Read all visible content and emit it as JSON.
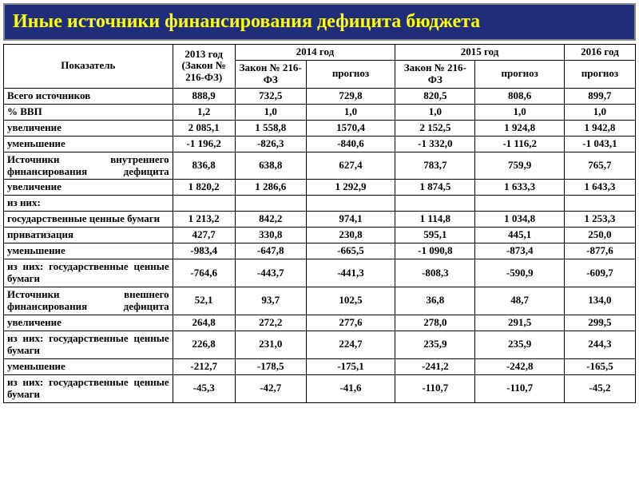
{
  "title": "Иные источники финансирования дефицита бюджета",
  "header": {
    "indicator": "Показатель",
    "y2013": "2013 год (Закон № 216-ФЗ)",
    "y2014": "2014 год",
    "y2015": "2015 год",
    "y2016": "2016 год",
    "law": "Закон № 216-ФЗ",
    "forecast": "прогноз"
  },
  "rows": [
    {
      "label": "Всего источников",
      "justify": false,
      "v": [
        "888,9",
        "732,5",
        "729,8",
        "820,5",
        "808,6",
        "899,7"
      ]
    },
    {
      "label": "% ВВП",
      "justify": false,
      "v": [
        "1,2",
        "1,0",
        "1,0",
        "1,0",
        "1,0",
        "1,0"
      ]
    },
    {
      "label": "увеличение",
      "justify": false,
      "v": [
        "2 085,1",
        "1 558,8",
        "1570,4",
        "2 152,5",
        "1 924,8",
        "1 942,8"
      ]
    },
    {
      "label": "уменьшение",
      "justify": false,
      "v": [
        "-1 196,2",
        "-826,3",
        "-840,6",
        "-1 332,0",
        "-1 116,2",
        "-1 043,1"
      ]
    },
    {
      "label": "Источники внутреннего финансирования дефицита",
      "justify": true,
      "v": [
        "836,8",
        "638,8",
        "627,4",
        "783,7",
        "759,9",
        "765,7"
      ]
    },
    {
      "label": "увеличение",
      "justify": false,
      "v": [
        "1 820,2",
        "1 286,6",
        "1 292,9",
        "1 874,5",
        "1 633,3",
        "1 643,3"
      ]
    },
    {
      "label": "из них:",
      "justify": false,
      "v": [
        "",
        "",
        "",
        "",
        "",
        ""
      ]
    },
    {
      "label": "государственные ценные бумаги",
      "justify": false,
      "v": [
        "1 213,2",
        "842,2",
        "974,1",
        "1 114,8",
        "1 034,8",
        "1 253,3"
      ]
    },
    {
      "label": "приватизация",
      "justify": false,
      "v": [
        "427,7",
        "330,8",
        "230,8",
        "595,1",
        "445,1",
        "250,0"
      ]
    },
    {
      "label": "уменьшение",
      "justify": false,
      "v": [
        "-983,4",
        "-647,8",
        "-665,5",
        "-1 090,8",
        "-873,4",
        "-877,6"
      ]
    },
    {
      "label": "из них: государственные ценные бумаги",
      "justify": true,
      "v": [
        "-764,6",
        "-443,7",
        "-441,3",
        "-808,3",
        "-590,9",
        "-609,7"
      ]
    },
    {
      "label": "Источники внешнего финансирования дефицита",
      "justify": true,
      "v": [
        "52,1",
        "93,7",
        "102,5",
        "36,8",
        "48,7",
        "134,0"
      ]
    },
    {
      "label": "увеличение",
      "justify": false,
      "v": [
        "264,8",
        "272,2",
        "277,6",
        "278,0",
        "291,5",
        "299,5"
      ]
    },
    {
      "label": "из них: государственные ценные бумаги",
      "justify": true,
      "v": [
        "226,8",
        "231,0",
        "224,7",
        "235,9",
        "235,9",
        "244,3"
      ]
    },
    {
      "label": "уменьшение",
      "justify": false,
      "v": [
        "-212,7",
        "-178,5",
        "-175,1",
        "-241,2",
        "-242,8",
        "-165,5"
      ]
    },
    {
      "label": "из них: государственные ценные бумаги",
      "justify": true,
      "v": [
        "-45,3",
        "-42,7",
        "-41,6",
        "-110,7",
        "-110,7",
        "-45,2"
      ]
    }
  ],
  "colors": {
    "title_bg": "#1f2d7a",
    "title_text": "#ffff00",
    "border": "#000000",
    "background": "#ffffff"
  }
}
